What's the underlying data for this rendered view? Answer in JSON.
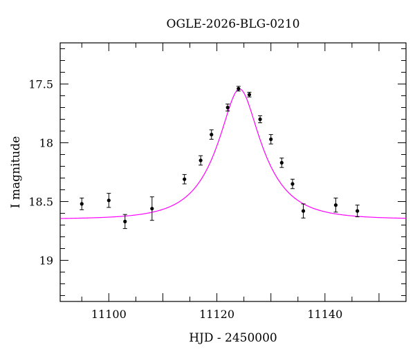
{
  "chart_data": {
    "type": "scatter",
    "title": "OGLE-2026-BLG-0210",
    "xlabel": "HJD - 2450000",
    "ylabel": "I magnitude",
    "xlim": [
      11091,
      11155
    ],
    "ylim": [
      19.35,
      17.15
    ],
    "y_inverted": true,
    "x_ticks": [
      11100,
      11120,
      11140
    ],
    "y_ticks": [
      17.5,
      18,
      18.5,
      19
    ],
    "y_tick_labels": [
      "17.5",
      "18",
      "18.5",
      "19"
    ],
    "grid": false,
    "series": [
      {
        "type": "scatter",
        "color": "#000000",
        "points": [
          {
            "x": 11095,
            "y": 18.52,
            "err": 0.05
          },
          {
            "x": 11100,
            "y": 18.49,
            "err": 0.06
          },
          {
            "x": 11103,
            "y": 18.67,
            "err": 0.06
          },
          {
            "x": 11108,
            "y": 18.56,
            "err": 0.1
          },
          {
            "x": 11114,
            "y": 18.31,
            "err": 0.04
          },
          {
            "x": 11117,
            "y": 18.15,
            "err": 0.04
          },
          {
            "x": 11119,
            "y": 17.93,
            "err": 0.04
          },
          {
            "x": 11122,
            "y": 17.7,
            "err": 0.03
          },
          {
            "x": 11124,
            "y": 17.54,
            "err": 0.02
          },
          {
            "x": 11126,
            "y": 17.59,
            "err": 0.02
          },
          {
            "x": 11128,
            "y": 17.8,
            "err": 0.03
          },
          {
            "x": 11130,
            "y": 17.97,
            "err": 0.04
          },
          {
            "x": 11132,
            "y": 18.17,
            "err": 0.04
          },
          {
            "x": 11134,
            "y": 18.35,
            "err": 0.04
          },
          {
            "x": 11136,
            "y": 18.58,
            "err": 0.06
          },
          {
            "x": 11142,
            "y": 18.53,
            "err": 0.06
          },
          {
            "x": 11146,
            "y": 18.58,
            "err": 0.05
          }
        ]
      },
      {
        "type": "line",
        "color": "#ff00ff",
        "model": {
          "t0": 11124.2,
          "u0": 0.38,
          "tE": 8.0,
          "baseline": 18.65
        }
      }
    ]
  }
}
